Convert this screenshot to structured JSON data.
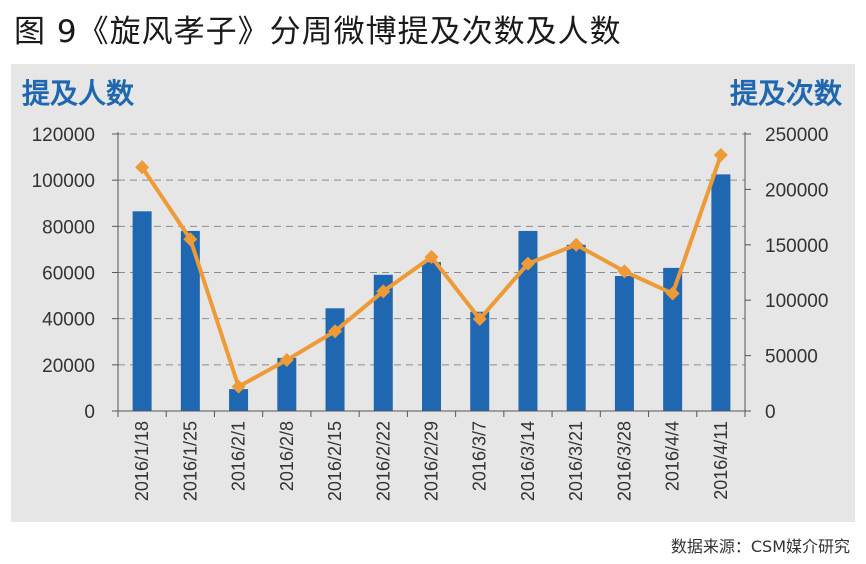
{
  "figure_title": "图 9《旋风孝子》分周微博提及次数及人数",
  "source": "数据来源：CSM媒介研究",
  "colors": {
    "bars": "#1f67b1",
    "line": "#ee9a36",
    "axis_title": "#1f67b1",
    "panel": "#e6e6e6"
  },
  "chart_data": {
    "type": "bar+line",
    "categories": [
      "2016/1/18",
      "2016/1/25",
      "2016/2/1",
      "2016/2/8",
      "2016/2/15",
      "2016/2/22",
      "2016/2/29",
      "2016/3/7",
      "2016/3/14",
      "2016/3/21",
      "2016/3/28",
      "2016/4/4",
      "2016/4/11"
    ],
    "series": [
      {
        "name": "提及人数",
        "type": "bar",
        "axis": "left",
        "values": [
          86500,
          78000,
          9500,
          23000,
          44500,
          59000,
          64500,
          43000,
          78000,
          72000,
          58500,
          62000,
          102500
        ]
      },
      {
        "name": "提及次数",
        "type": "line",
        "axis": "right",
        "values": [
          220000,
          155000,
          22000,
          46000,
          72000,
          108000,
          139000,
          83000,
          133000,
          150000,
          126000,
          106000,
          231000
        ]
      }
    ],
    "y_left": {
      "label": "提及人数",
      "lim": [
        0,
        120000
      ],
      "ticks": [
        0,
        20000,
        40000,
        60000,
        80000,
        100000,
        120000
      ],
      "tick_labels": [
        "0",
        "20000",
        "40000",
        "60000",
        "80000",
        "100000",
        "120000"
      ]
    },
    "y_right": {
      "label": "提及次数",
      "lim": [
        0,
        250000
      ],
      "ticks": [
        0,
        50000,
        100000,
        150000,
        200000,
        250000
      ],
      "tick_labels": [
        "0",
        "50000",
        "100000",
        "150000",
        "200000",
        "250000"
      ]
    },
    "grid": "dashed horizontal"
  }
}
